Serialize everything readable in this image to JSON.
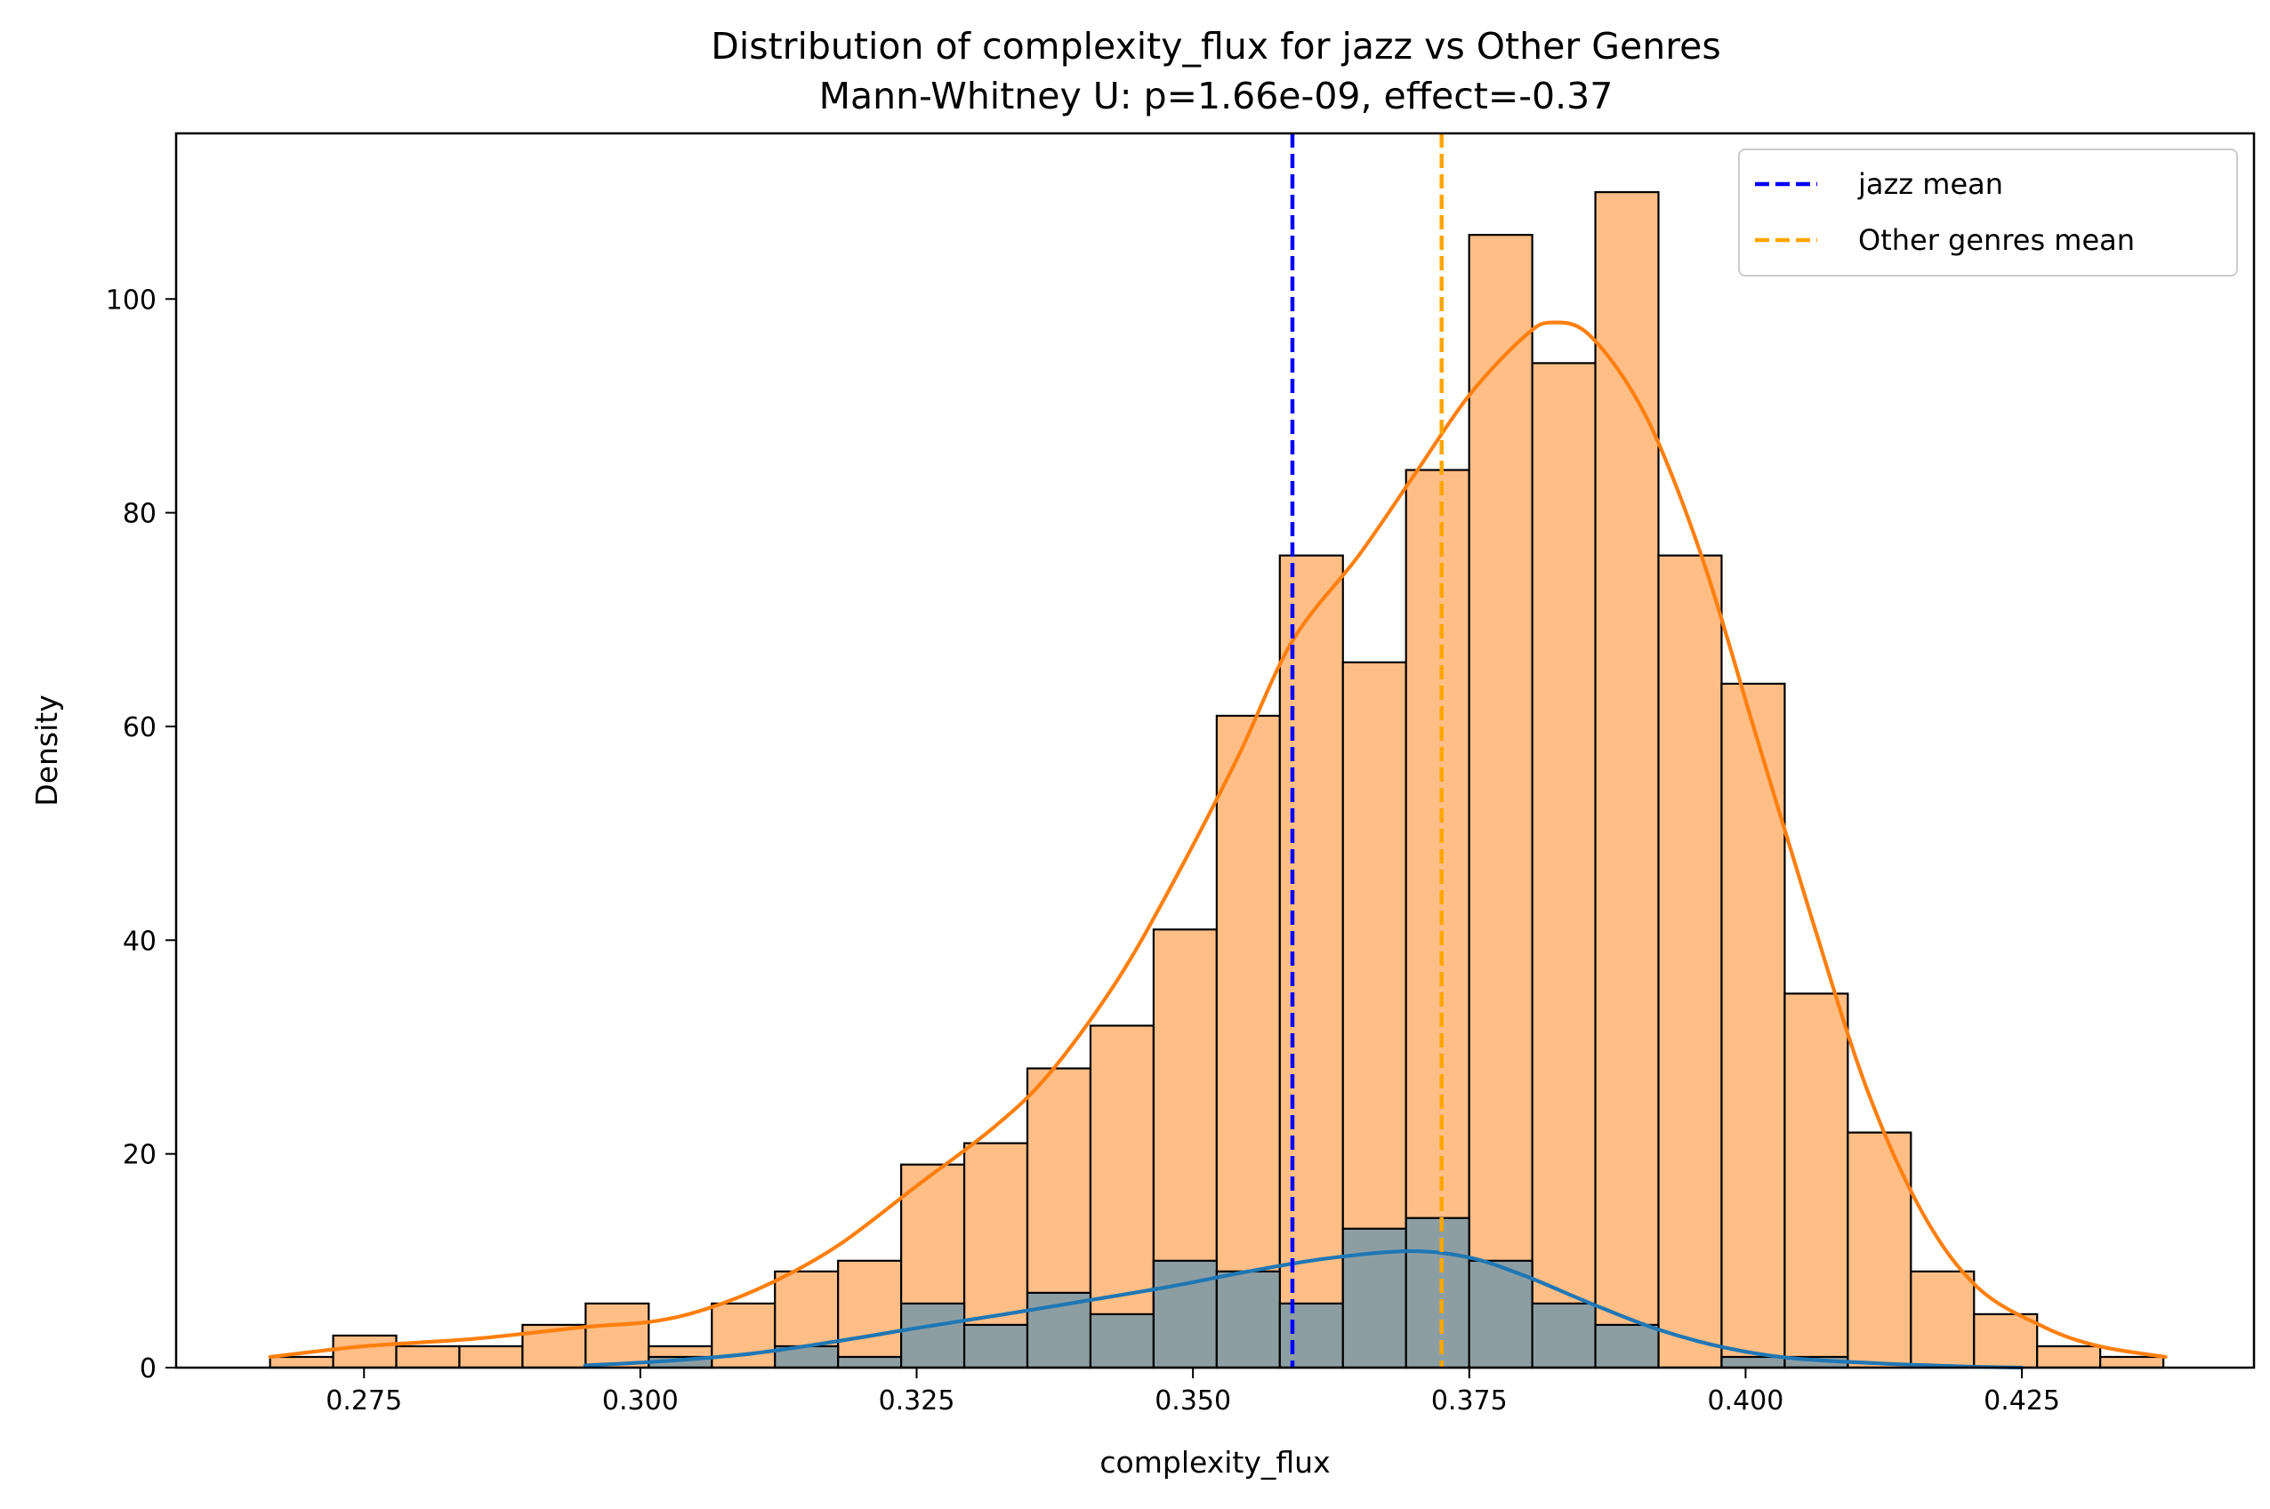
{
  "chart_data": {
    "type": "bar",
    "title": "Distribution of complexity_flux for jazz vs Other Genres",
    "subtitle": "Mann-Whitney U: p=1.66e-09, effect=-0.37",
    "xlabel": "complexity_flux",
    "ylabel": "Density",
    "xlim": [
      0.258,
      0.446
    ],
    "ylim": [
      0,
      115.5
    ],
    "xticks": [
      0.275,
      0.3,
      0.325,
      0.35,
      0.375,
      0.4,
      0.425
    ],
    "xtick_labels": [
      "0.275",
      "0.300",
      "0.325",
      "0.350",
      "0.375",
      "0.400",
      "0.425"
    ],
    "yticks": [
      0,
      20,
      40,
      60,
      80,
      100
    ],
    "ytick_labels": [
      "0",
      "20",
      "40",
      "60",
      "80",
      "100"
    ],
    "bin_start": 0.2665,
    "bin_width": 0.00571,
    "series": [
      {
        "key": "other",
        "values": [
          1,
          3,
          2,
          2,
          4,
          6,
          2,
          6,
          9,
          10,
          19,
          21,
          28,
          32,
          41,
          61,
          76,
          66,
          84,
          106,
          94,
          110,
          76,
          64,
          35,
          22,
          9,
          5,
          2,
          1
        ],
        "color": "#ffbe86",
        "kde_color": "#ff7f0e",
        "kde": [
          [
            0.2665,
            1.0
          ],
          [
            0.275,
            2.0
          ],
          [
            0.285,
            2.7
          ],
          [
            0.295,
            3.8
          ],
          [
            0.301,
            4.3
          ],
          [
            0.306,
            5.5
          ],
          [
            0.312,
            8.0
          ],
          [
            0.318,
            11.5
          ],
          [
            0.325,
            17.0
          ],
          [
            0.332,
            22.5
          ],
          [
            0.337,
            27.5
          ],
          [
            0.343,
            36.0
          ],
          [
            0.348,
            45.0
          ],
          [
            0.354,
            57.0
          ],
          [
            0.359,
            68.0
          ],
          [
            0.365,
            76.0
          ],
          [
            0.37,
            83.5
          ],
          [
            0.375,
            91.0
          ],
          [
            0.38,
            96.5
          ],
          [
            0.3825,
            97.8
          ],
          [
            0.386,
            96.5
          ],
          [
            0.391,
            89.0
          ],
          [
            0.396,
            76.0
          ],
          [
            0.401,
            59.0
          ],
          [
            0.406,
            42.0
          ],
          [
            0.411,
            26.0
          ],
          [
            0.416,
            14.5
          ],
          [
            0.421,
            7.5
          ],
          [
            0.427,
            3.8
          ],
          [
            0.432,
            2.0
          ],
          [
            0.438,
            1.0
          ]
        ]
      },
      {
        "key": "jazz",
        "values": [
          0,
          0,
          0,
          0,
          0,
          0,
          1,
          0,
          2,
          1,
          6,
          4,
          7,
          5,
          10,
          9,
          6,
          13,
          14,
          10,
          6,
          4,
          0,
          1,
          1,
          0,
          0,
          0,
          0,
          0
        ],
        "color": "#8d9ea3",
        "kde_color": "#1f77b4",
        "kde": [
          [
            0.295,
            0.2
          ],
          [
            0.302,
            0.6
          ],
          [
            0.31,
            1.3
          ],
          [
            0.318,
            2.5
          ],
          [
            0.325,
            3.7
          ],
          [
            0.333,
            5.0
          ],
          [
            0.34,
            6.2
          ],
          [
            0.348,
            7.6
          ],
          [
            0.355,
            9.0
          ],
          [
            0.362,
            10.2
          ],
          [
            0.3695,
            10.9
          ],
          [
            0.375,
            10.3
          ],
          [
            0.38,
            8.6
          ],
          [
            0.386,
            6.0
          ],
          [
            0.392,
            3.6
          ],
          [
            0.398,
            1.9
          ],
          [
            0.404,
            0.9
          ],
          [
            0.412,
            0.4
          ],
          [
            0.42,
            0.1
          ],
          [
            0.425,
            0.0
          ]
        ]
      }
    ],
    "mean_lines": [
      {
        "label": "jazz mean",
        "x": 0.359,
        "color": "#0000ff"
      },
      {
        "label": "Other genres mean",
        "x": 0.3725,
        "color": "#ffa500"
      }
    ],
    "legend_position": "top-right",
    "grid": false
  }
}
